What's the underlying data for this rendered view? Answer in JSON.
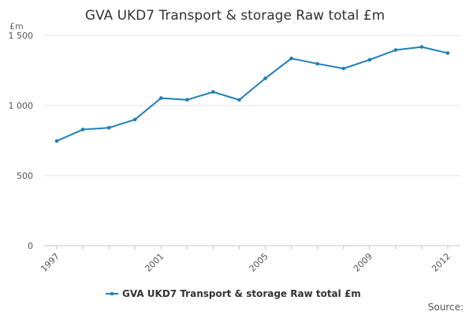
{
  "chart_data": {
    "type": "line",
    "title": "GVA UKD7 Transport & storage Raw total £m",
    "y_unit": "£m",
    "ylim": [
      0,
      1500
    ],
    "y_ticks": [
      {
        "value": 0,
        "label": "0"
      },
      {
        "value": 500,
        "label": "500"
      },
      {
        "value": 1000,
        "label": "1 000"
      },
      {
        "value": 1500,
        "label": "1 500"
      }
    ],
    "x_tick_labels": [
      "1997",
      "2001",
      "2005",
      "2009",
      "2012"
    ],
    "x": [
      1997,
      1998,
      1999,
      2000,
      2001,
      2002,
      2003,
      2004,
      2005,
      2006,
      2007,
      2008,
      2009,
      2010,
      2011,
      2012
    ],
    "series": [
      {
        "name": "GVA UKD7 Transport & storage Raw total £m",
        "color": "#1f7fb8",
        "values": [
          747,
          829,
          841,
          900,
          1053,
          1041,
          1097,
          1040,
          1194,
          1336,
          1298,
          1264,
          1326,
          1396,
          1418,
          1374
        ]
      }
    ],
    "grid": true,
    "legend_position": "bottom",
    "source_label": "Source:"
  }
}
